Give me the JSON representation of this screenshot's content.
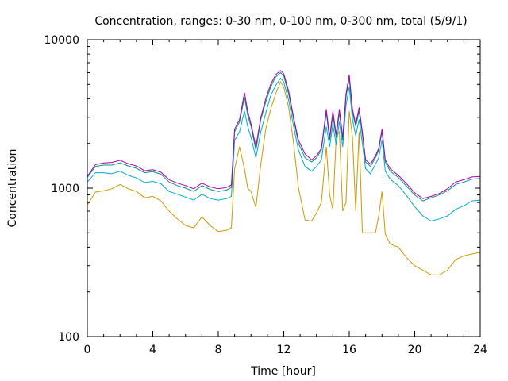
{
  "chart_data": {
    "type": "line",
    "title": "Concentration, ranges: 0-30 nm, 0-100 nm, 0-300 nm, total (5/9/1)",
    "xlabel": "Time [hour]",
    "ylabel": "Concentration",
    "xlim": [
      0,
      24
    ],
    "ylim": [
      100,
      10000
    ],
    "yscale": "log",
    "x_ticks": [
      0,
      4,
      8,
      12,
      16,
      20,
      24
    ],
    "y_ticks": [
      100,
      1000,
      10000
    ],
    "grid": false,
    "legend": "none",
    "x": [
      0,
      0.5,
      1,
      1.5,
      2,
      2.5,
      3,
      3.5,
      4,
      4.5,
      5,
      5.5,
      6,
      6.5,
      7,
      7.5,
      8,
      8.5,
      8.8,
      9,
      9.3,
      9.6,
      9.8,
      10,
      10.3,
      10.6,
      10.9,
      11.2,
      11.5,
      11.8,
      12,
      12.3,
      12.6,
      12.9,
      13.3,
      13.7,
      14,
      14.3,
      14.6,
      14.8,
      15,
      15.2,
      15.4,
      15.6,
      15.8,
      16,
      16.2,
      16.4,
      16.6,
      16.8,
      17,
      17.3,
      17.6,
      17.8,
      18,
      18.2,
      18.5,
      19,
      19.5,
      20,
      20.5,
      21,
      21.5,
      22,
      22.5,
      23,
      23.5,
      24
    ],
    "series": [
      {
        "color": "#cc9900",
        "values": [
          770,
          940,
          960,
          990,
          1060,
          990,
          950,
          860,
          880,
          820,
          700,
          620,
          560,
          540,
          640,
          560,
          510,
          520,
          540,
          1350,
          1900,
          1350,
          1000,
          950,
          740,
          1450,
          2500,
          3400,
          4300,
          5200,
          4800,
          3500,
          2000,
          1000,
          610,
          600,
          680,
          800,
          1900,
          900,
          720,
          2200,
          2400,
          700,
          800,
          3300,
          2200,
          700,
          2400,
          500,
          500,
          500,
          500,
          650,
          950,
          490,
          420,
          400,
          340,
          300,
          280,
          260,
          260,
          280,
          330,
          350,
          360,
          370
        ]
      },
      {
        "color": "#00aacc",
        "values": [
          1100,
          1270,
          1270,
          1250,
          1300,
          1220,
          1170,
          1090,
          1110,
          1070,
          950,
          910,
          870,
          830,
          910,
          850,
          830,
          850,
          880,
          2100,
          2400,
          3300,
          2600,
          2200,
          1600,
          2400,
          3200,
          4200,
          4900,
          5500,
          5200,
          3900,
          2600,
          1800,
          1400,
          1300,
          1400,
          1550,
          2600,
          1900,
          2700,
          1950,
          2800,
          1900,
          3600,
          4800,
          2900,
          2250,
          2900,
          2000,
          1350,
          1250,
          1450,
          1600,
          2100,
          1300,
          1150,
          1040,
          890,
          750,
          650,
          600,
          620,
          650,
          720,
          760,
          820,
          830
        ]
      },
      {
        "color": "#009980",
        "values": [
          1180,
          1400,
          1430,
          1430,
          1480,
          1410,
          1360,
          1270,
          1290,
          1240,
          1100,
          1040,
          1000,
          950,
          1040,
          980,
          950,
          970,
          1010,
          2400,
          2800,
          4100,
          3100,
          2600,
          1800,
          2900,
          3800,
          4800,
          5600,
          6000,
          5700,
          4300,
          2900,
          2000,
          1600,
          1500,
          1600,
          1800,
          3200,
          2100,
          3100,
          2200,
          3200,
          2100,
          4100,
          5500,
          3200,
          2600,
          3300,
          2300,
          1500,
          1400,
          1600,
          1800,
          2400,
          1500,
          1300,
          1180,
          1030,
          900,
          820,
          860,
          900,
          960,
          1060,
          1100,
          1150,
          1160
        ]
      },
      {
        "color": "#aa00aa",
        "values": [
          1200,
          1440,
          1480,
          1490,
          1540,
          1460,
          1410,
          1310,
          1330,
          1280,
          1140,
          1080,
          1040,
          990,
          1080,
          1020,
          990,
          1010,
          1050,
          2500,
          2900,
          4400,
          3300,
          2700,
          1900,
          3000,
          4000,
          5000,
          5800,
          6200,
          5900,
          4500,
          3000,
          2100,
          1700,
          1550,
          1650,
          1850,
          3400,
          2200,
          3300,
          2300,
          3400,
          2200,
          4300,
          5800,
          3400,
          2700,
          3500,
          2400,
          1550,
          1450,
          1650,
          1850,
          2500,
          1550,
          1350,
          1220,
          1070,
          930,
          850,
          880,
          920,
          990,
          1100,
          1140,
          1190,
          1200
        ]
      }
    ]
  }
}
